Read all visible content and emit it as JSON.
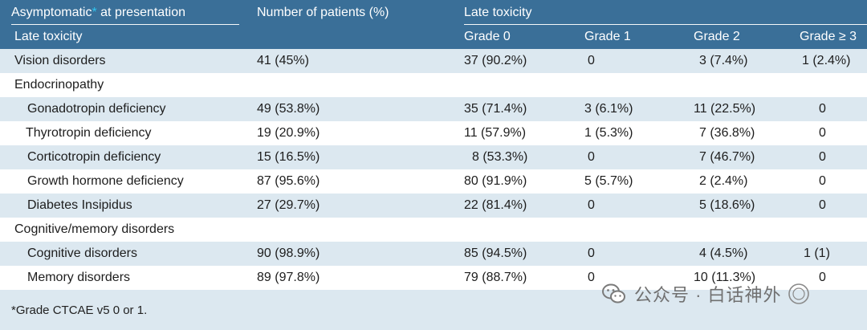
{
  "header": {
    "left_title_prefix": "Asymptomatic",
    "left_title_star": "*",
    "left_title_suffix": " at presentation",
    "left_subtitle": "Late toxicity",
    "count_header": "Number of patients (%)",
    "late_toxicity_header": "Late toxicity",
    "grades": [
      "Grade 0",
      "Grade 1",
      "Grade 2",
      "Grade ≥ 3"
    ]
  },
  "rows": [
    {
      "label": "Vision disorders",
      "indent": 0,
      "count": "41 (45%)",
      "g0": "37 (90.2%)",
      "g1": "0",
      "g2": "3 (7.4%)",
      "g3": "1 (2.4%)"
    },
    {
      "label": "Endocrinopathy",
      "indent": 0,
      "count": "",
      "g0": "",
      "g1": "",
      "g2": "",
      "g3": ""
    },
    {
      "label": "Gonadotropin deficiency",
      "indent": 1,
      "count": "49 (53.8%)",
      "g0": "35 (71.4%)",
      "g1": "3 (6.1%)",
      "g2": "11 (22.5%)",
      "g3": "0"
    },
    {
      "label": "Thyrotropin deficiency",
      "indent": 1,
      "count": "19 (20.9%)",
      "g0": "11 (57.9%)",
      "g1": "1 (5.3%)",
      "g2": "7 (36.8%)",
      "g3": "0"
    },
    {
      "label": "Corticotropin deficiency",
      "indent": 1,
      "count": "15 (16.5%)",
      "g0": "8 (53.3%)",
      "g1": "0",
      "g2": "7 (46.7%)",
      "g3": "0"
    },
    {
      "label": "Growth hormone deficiency",
      "indent": 1,
      "count": "87 (95.6%)",
      "g0": "80 (91.9%)",
      "g1": "5 (5.7%)",
      "g2": "2 (2.4%)",
      "g3": "0"
    },
    {
      "label": "Diabetes Insipidus",
      "indent": 1,
      "count": "27 (29.7%)",
      "g0": "22 (81.4%)",
      "g1": "0",
      "g2": "5 (18.6%)",
      "g3": "0"
    },
    {
      "label": "Cognitive/memory disorders",
      "indent": 0,
      "count": "",
      "g0": "",
      "g1": "",
      "g2": "",
      "g3": ""
    },
    {
      "label": "Cognitive disorders",
      "indent": 1,
      "count": "90 (98.9%)",
      "g0": "85 (94.5%)",
      "g1": "0",
      "g2": "4 (4.5%)",
      "g3": "1 (1)"
    },
    {
      "label": "Memory disorders",
      "indent": 1,
      "count": "89 (97.8%)",
      "g0": "79 (88.7%)",
      "g1": "0",
      "g2": "10 (11.3%)",
      "g3": "0"
    }
  ],
  "footnote": "*Grade CTCAE v5 0 or 1.",
  "watermark": {
    "text": "公众号 · 白话神外",
    "icon": "wechat-icon"
  },
  "colors": {
    "header_bg": "#3a6f98",
    "shade_bg": "#dce8f0",
    "star": "#2ec4ef"
  }
}
